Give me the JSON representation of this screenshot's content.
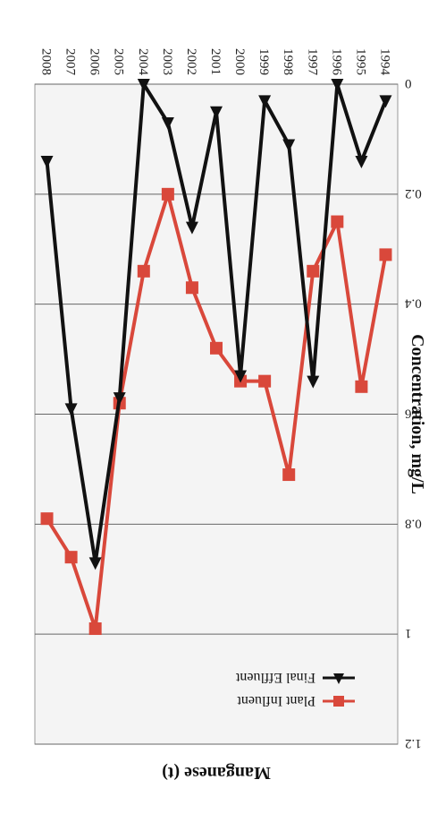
{
  "chart_data": {
    "type": "line",
    "title": "Manganese (t)",
    "ylabel": "Concentration, mg/L",
    "xlabel": "",
    "x": [
      "1994",
      "1995",
      "1996",
      "1997",
      "1998",
      "1999",
      "2000",
      "2001",
      "2002",
      "2003",
      "2004",
      "2005",
      "2006",
      "2007",
      "2008"
    ],
    "ylim": [
      0,
      1.2
    ],
    "yticks": [
      "0",
      "0.2",
      "0.4",
      "0.6",
      "0.8",
      "1",
      "1.2"
    ],
    "grid": true,
    "legend_position": "top-left",
    "series": [
      {
        "name": "Plant Influent",
        "color": "#d9483b",
        "marker": "square",
        "values": [
          0.31,
          0.55,
          0.25,
          0.34,
          0.71,
          0.54,
          0.54,
          0.48,
          0.37,
          0.2,
          0.34,
          0.58,
          0.99,
          0.86,
          0.79
        ]
      },
      {
        "name": "Final Effluent",
        "color": "#111111",
        "marker": "triangle",
        "values": [
          0.03,
          0.14,
          0.0,
          0.54,
          0.11,
          0.03,
          0.53,
          0.05,
          0.26,
          0.07,
          0.0,
          0.57,
          0.87,
          0.59,
          0.14
        ]
      }
    ]
  }
}
